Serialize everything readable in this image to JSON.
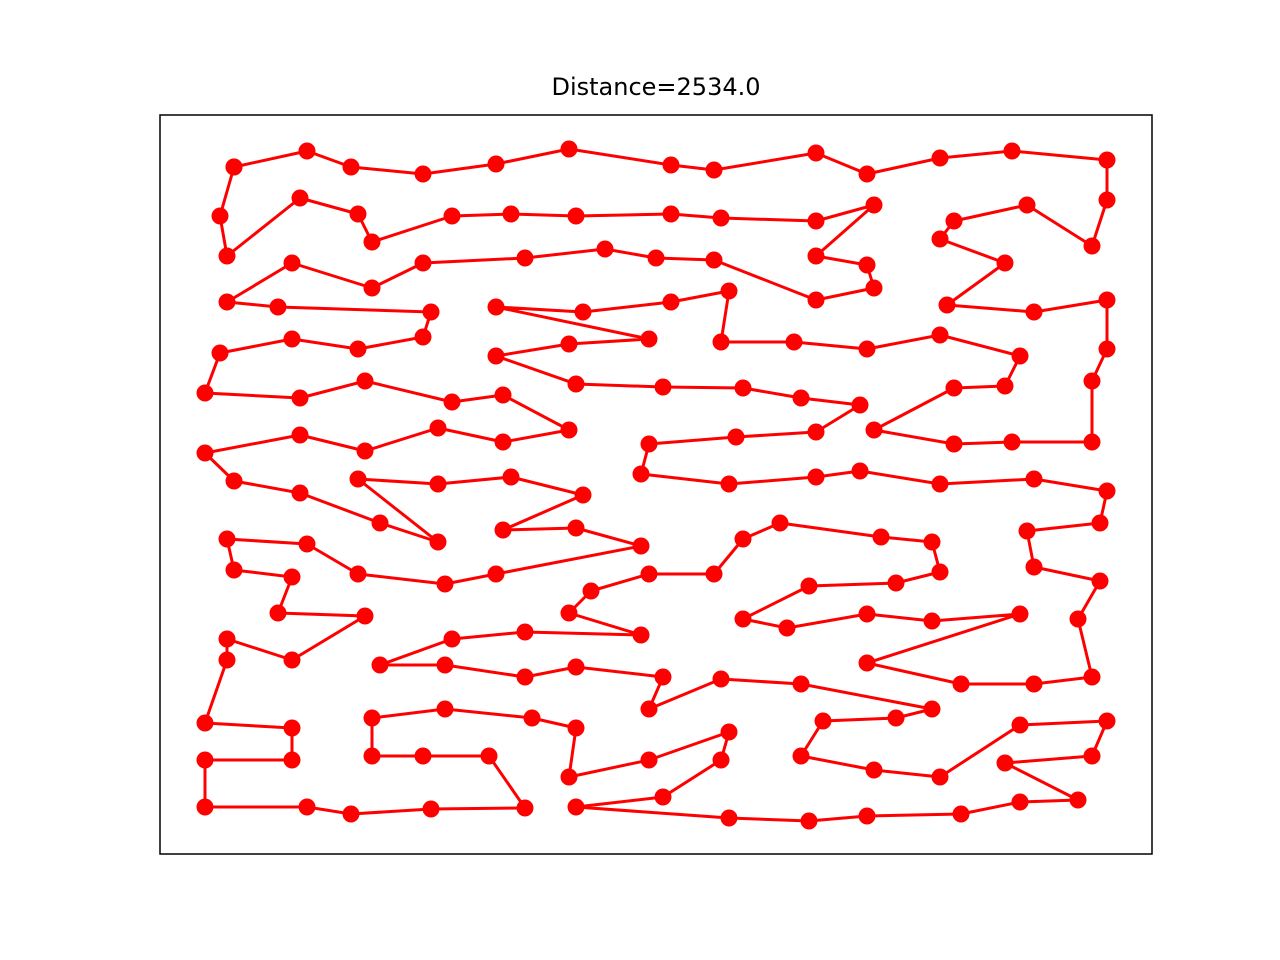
{
  "chart_data": {
    "type": "line",
    "title": "Distance=2534.0",
    "color": "#ff0000",
    "xlim": [
      0,
      992
    ],
    "ylim": [
      0,
      739
    ],
    "x": [
      74,
      147,
      191,
      263,
      336,
      409,
      511,
      554,
      656,
      707,
      780,
      852,
      947,
      947,
      932,
      867,
      794,
      780,
      845,
      787,
      874,
      947,
      947,
      932,
      932,
      852,
      794,
      714,
      794,
      845,
      860,
      780,
      707,
      634,
      561,
      569,
      511,
      423,
      336,
      489,
      409,
      336,
      416,
      503,
      583,
      641,
      700,
      656,
      576,
      489,
      481,
      569,
      656,
      700,
      780,
      874,
      947,
      940,
      867,
      874,
      940,
      918,
      932,
      874,
      801,
      707,
      860,
      772,
      707,
      627,
      583,
      649,
      736,
      780,
      772,
      721,
      620,
      583,
      554,
      489,
      431,
      409,
      481,
      365,
      292,
      220,
      285,
      365,
      416,
      503,
      489,
      561,
      641,
      772,
      736,
      663,
      641,
      714,
      780,
      860,
      947,
      932,
      845,
      918,
      860,
      801,
      707,
      649,
      569,
      416,
      503,
      561,
      569,
      489,
      409,
      416,
      372,
      285,
      212,
      212,
      263,
      329,
      365,
      271,
      191,
      147,
      45,
      45,
      132,
      132,
      45,
      67,
      67,
      132,
      205,
      118,
      132,
      74,
      67,
      147,
      198,
      285,
      336,
      481,
      416,
      343,
      423,
      351,
      278,
      198,
      278,
      220,
      140,
      74,
      45,
      140,
      205,
      278,
      343,
      409,
      343,
      292,
      205,
      140,
      45,
      60,
      132,
      198,
      263,
      271,
      118,
      67,
      132,
      212,
      263,
      365,
      445,
      496,
      554,
      656,
      714,
      707,
      656,
      714,
      656,
      561,
      511,
      416,
      351,
      292,
      212,
      198,
      140,
      67,
      60,
      74
    ],
    "values": [
      687,
      703,
      687,
      680,
      690,
      705,
      689,
      684,
      701,
      680,
      696,
      703,
      694,
      654,
      608,
      649,
      633,
      615,
      591,
      549,
      542,
      554,
      505,
      473,
      412,
      412,
      410,
      424,
      466,
      468,
      498,
      519,
      505,
      512,
      512,
      563,
      552,
      542,
      547,
      515,
      510,
      498,
      470,
      467,
      466,
      456,
      449,
      422,
      417,
      410,
      380,
      370,
      377,
      383,
      370,
      375,
      363,
      331,
      323,
      287,
      273,
      235,
      177,
      170,
      170,
      191,
      240,
      233,
      240,
      226,
      235,
      268,
      271,
      282,
      312,
      317,
      331,
      315,
      280,
      280,
      263,
      241,
      219,
      222,
      215,
      189,
      189,
      177,
      187,
      177,
      145,
      175,
      170,
      145,
      136,
      133,
      98,
      84,
      77,
      129,
      133,
      98,
      91,
      54,
      52,
      40,
      38,
      33,
      36,
      47,
      57,
      94,
      122,
      94,
      77,
      126,
      136,
      145,
      136,
      98,
      98,
      98,
      46,
      45,
      40,
      47,
      47,
      94,
      94,
      126,
      131,
      194,
      215,
      194,
      238,
      241,
      277,
      284,
      315,
      310,
      280,
      270,
      280,
      308,
      326,
      324,
      359,
      377,
      370,
      375,
      312,
      331,
      361,
      373,
      401,
      419,
      403,
      426,
      412,
      424,
      459,
      452,
      473,
      456,
      461,
      501,
      515,
      505,
      517,
      542,
      547,
      552,
      591,
      566,
      591,
      596,
      605,
      596,
      594,
      554,
      566,
      589,
      598,
      649,
      633,
      636,
      640,
      638,
      640,
      638,
      612,
      640,
      656,
      598,
      638,
      687
    ]
  }
}
